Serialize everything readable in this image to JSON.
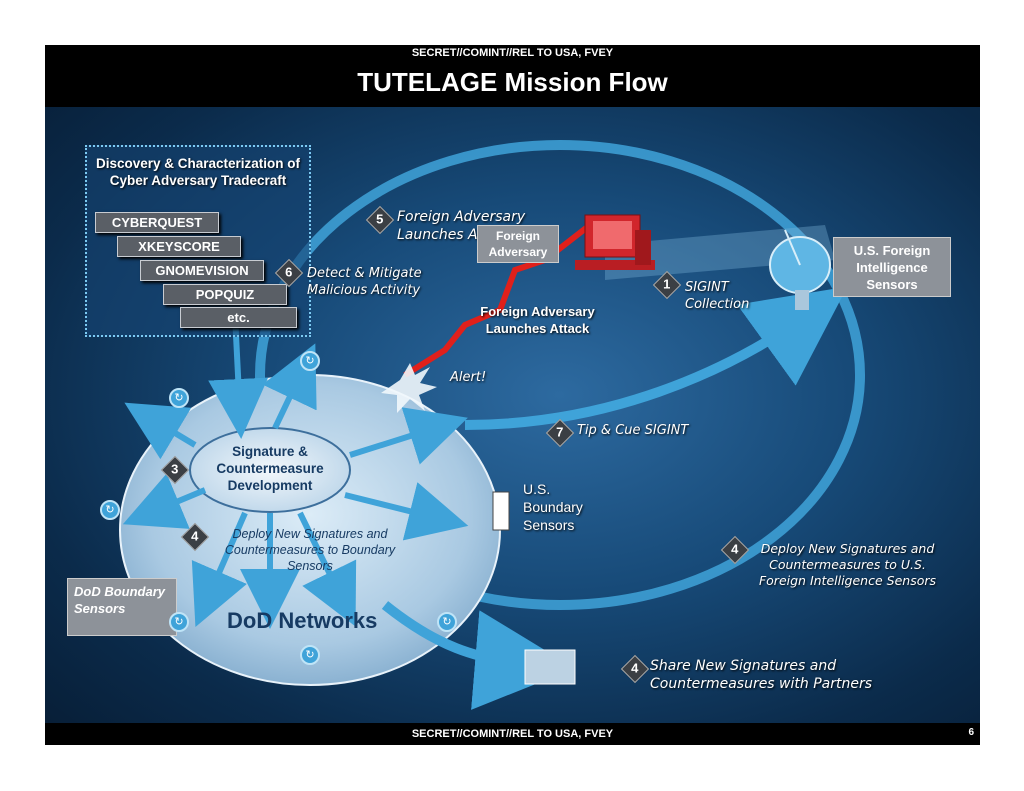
{
  "header": {
    "classification": "SECRET//COMINT//REL TO USA, FVEY",
    "title": "TUTELAGE Mission Flow"
  },
  "footer": {
    "classification": "SECRET//COMINT//REL TO USA, FVEY",
    "page_number": "6"
  },
  "discovery": {
    "title": "Discovery & Characterization of Cyber Adversary Tradecraft",
    "tools": [
      "CYBERQUEST",
      "XKEYSCORE",
      "GNOMEVISION",
      "POPQUIZ",
      "etc."
    ]
  },
  "steps": {
    "s1": {
      "num": "1",
      "label": "SIGINT Collection"
    },
    "s3": {
      "num": "3",
      "label": "Signature & Countermeasure Development"
    },
    "s4a": {
      "num": "4",
      "label": "Deploy New Signatures and Countermeasures to Boundary Sensors"
    },
    "s4b": {
      "num": "4",
      "label": "Deploy New Signatures and Countermeasures to U.S. Foreign Intelligence Sensors"
    },
    "s4c": {
      "num": "4",
      "label": "Share New Signatures and Countermeasures with Partners"
    },
    "s5": {
      "num": "5",
      "label": "Foreign Adversary Launches Attack"
    },
    "s6": {
      "num": "6",
      "label": "Detect & Mitigate Malicious Activity"
    },
    "s7": {
      "num": "7",
      "label": "Tip & Cue SIGINT"
    }
  },
  "labels": {
    "foreign_adversary": "Foreign Adversary",
    "fa_launches": "Foreign Adversary Launches Attack",
    "us_foreign_intel": "U.S. Foreign Intelligence Sensors",
    "alert": "Alert!",
    "us_boundary": "U.S. Boundary Sensors",
    "dod_boundary": "DoD Boundary Sensors",
    "dod_networks": "DoD Networks"
  },
  "colors": {
    "arrow_blue": "#3fa3d9",
    "attack_red": "#e0201b",
    "tool_box": "#5a5f66"
  }
}
